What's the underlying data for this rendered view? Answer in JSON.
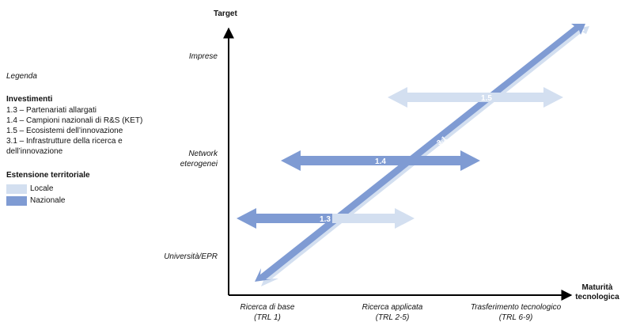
{
  "axes": {
    "y_title": "Target",
    "x_title_line1": "Maturità",
    "x_title_line2": "tecnologica",
    "y_levels": {
      "imprese": "Imprese",
      "network_line1": "Network",
      "network_line2": "eterogenei",
      "universita": "Università/EPR"
    },
    "x_levels": {
      "base_line1": "Ricerca di base",
      "base_line2": "(TRL 1)",
      "applicata_line1": "Ricerca applicata",
      "applicata_line2": "(TRL 2-5)",
      "trasferimento_line1": "Trasferimento tecnologico",
      "trasferimento_line2": "(TRL 6-9)"
    }
  },
  "legend": {
    "title": "Legenda",
    "investments_title": "Investimenti",
    "investments": [
      "1.3 – Partenariati allargati",
      "1.4 – Campioni nazionali di R&S (KET)",
      "1.5 – Ecosistemi dell’innovazione",
      "3.1 – Infrastrutture della ricerca e dell’innovazione"
    ],
    "territorial_title": "Estensione territoriale",
    "local_label": "Locale",
    "national_label": "Nazionale"
  },
  "arrows": {
    "a13": "1.3",
    "a14": "1.4",
    "a15": "1.5",
    "a31": "3.1"
  },
  "colors": {
    "locale": "#d3dff0",
    "nazionale": "#7f9bd3",
    "axis": "#000000"
  }
}
